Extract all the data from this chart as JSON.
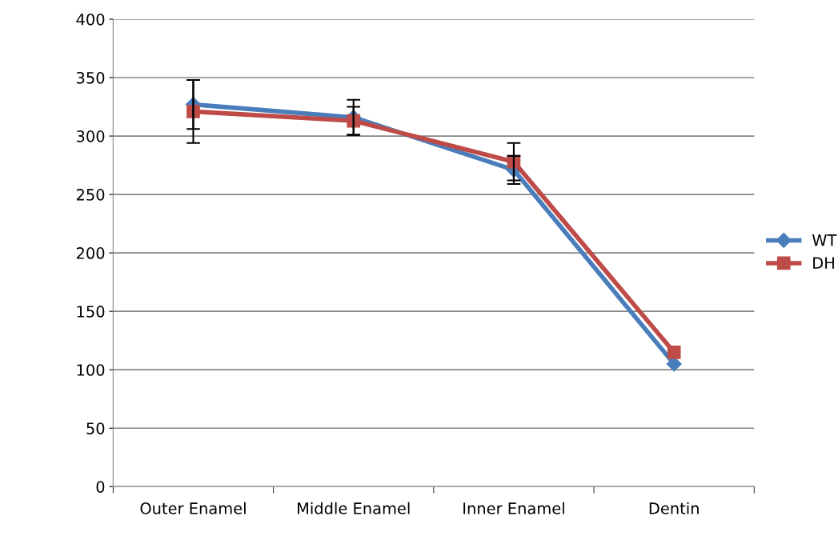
{
  "chart_data": {
    "type": "line",
    "categories": [
      "Outer Enamel",
      "Middle Enamel",
      "Inner Enamel",
      "Dentin"
    ],
    "series": [
      {
        "name": "WT",
        "color": "#4a7ebb",
        "marker": "diamond",
        "values": [
          327,
          316,
          271,
          105
        ],
        "errors": [
          21,
          15,
          12,
          null
        ]
      },
      {
        "name": "DH",
        "color": "#be4b48",
        "marker": "square",
        "values": [
          321,
          313,
          278,
          115
        ],
        "errors": [
          27,
          12,
          16,
          null
        ]
      }
    ],
    "ylim": [
      0,
      400
    ],
    "yticks": [
      0,
      50,
      100,
      150,
      200,
      250,
      300,
      350,
      400
    ],
    "grid": "y",
    "legend": "right",
    "line_style": "solid"
  }
}
